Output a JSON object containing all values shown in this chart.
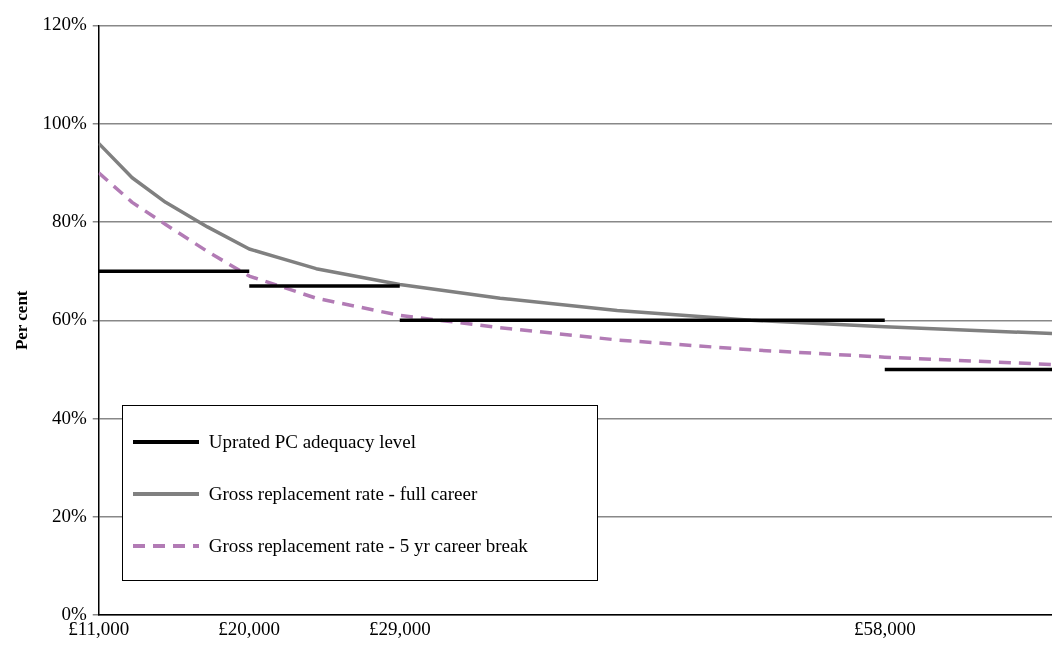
{
  "chart_data": {
    "type": "line",
    "ylabel": "Per cent",
    "xlim": [
      11000,
      68000
    ],
    "xticks": [
      {
        "value": 11000,
        "label": "£11,000"
      },
      {
        "value": 20000,
        "label": "£20,000"
      },
      {
        "value": 29000,
        "label": "£29,000"
      },
      {
        "value": 58000,
        "label": "£58,000"
      }
    ],
    "ylim": [
      0,
      120
    ],
    "yticks": [
      {
        "value": 0,
        "label": "0%"
      },
      {
        "value": 20,
        "label": "20%"
      },
      {
        "value": 40,
        "label": "40%"
      },
      {
        "value": 60,
        "label": "60%"
      },
      {
        "value": 80,
        "label": "80%"
      },
      {
        "value": 100,
        "label": "100%"
      },
      {
        "value": 120,
        "label": "120%"
      }
    ],
    "grid": "y",
    "legend": "bottom left",
    "marker": "none",
    "series": [
      {
        "name": "Uprated PC adequacy level",
        "color": "#000000",
        "line_style": "solid",
        "x": [
          11000,
          20000,
          20000,
          29000,
          29000,
          58000,
          58000,
          68000
        ],
        "values": [
          70,
          70,
          67,
          67,
          60,
          60,
          50,
          50
        ]
      },
      {
        "name": "Gross replacement rate  - full career",
        "color": "#808080",
        "line_style": "solid",
        "x": [
          11000,
          13000,
          15000,
          17500,
          20000,
          24000,
          29000,
          35000,
          42000,
          50000,
          58000,
          68000
        ],
        "values": [
          96,
          89,
          84,
          79,
          74.5,
          70.5,
          67.3,
          64.5,
          62,
          60,
          58.7,
          57.3
        ]
      },
      {
        "name": "Gross replacement rate  - 5 yr career break",
        "color": "#b27bb5",
        "line_style": "dashed",
        "x": [
          11000,
          13000,
          15000,
          17500,
          20000,
          24000,
          29000,
          35000,
          42000,
          50000,
          58000,
          68000
        ],
        "values": [
          90,
          84,
          79.5,
          74,
          69,
          64.5,
          61,
          58.5,
          56,
          54,
          52.5,
          51
        ]
      }
    ]
  }
}
